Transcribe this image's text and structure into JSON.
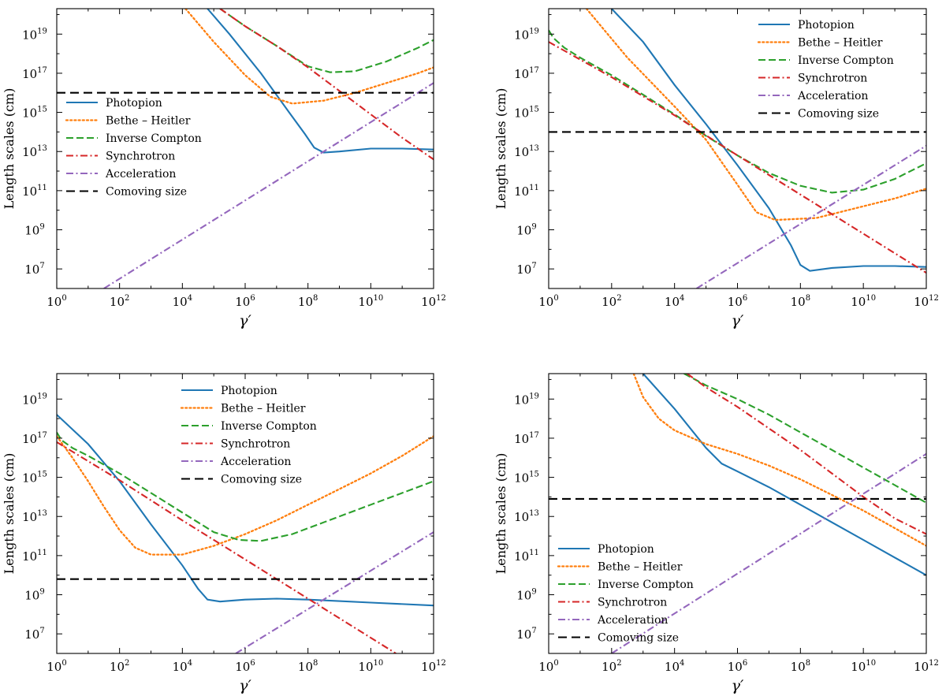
{
  "chart_data": [
    {
      "type": "line",
      "panel": "top-left",
      "xlabel": "γ′",
      "ylabel": "Length scales (cm)",
      "x_scale": "log",
      "y_scale": "log",
      "xlim_exp": [
        0,
        12
      ],
      "ylim_exp": [
        6,
        20.3
      ],
      "x_tick_exps": [
        0,
        2,
        4,
        6,
        8,
        10,
        12
      ],
      "y_tick_exps": [
        7,
        9,
        11,
        13,
        15,
        17,
        19
      ],
      "legend_position": "center-left",
      "series": [
        {
          "name": "Photopion",
          "color": "#1f77b4",
          "style": "solid",
          "points": [
            [
              4.8,
              20.3
            ],
            [
              5.5,
              19.0
            ],
            [
              6.5,
              17.0
            ],
            [
              7.4,
              15.0
            ],
            [
              7.9,
              13.9
            ],
            [
              8.2,
              13.2
            ],
            [
              8.5,
              12.95
            ],
            [
              9.0,
              13.0
            ],
            [
              10.0,
              13.15
            ],
            [
              11.0,
              13.15
            ],
            [
              12.0,
              13.1
            ]
          ]
        },
        {
          "name": "Bethe – Heitler",
          "color": "#ff7f0e",
          "style": "dotted",
          "points": [
            [
              4.1,
              20.3
            ],
            [
              5.0,
              18.6
            ],
            [
              6.0,
              16.9
            ],
            [
              6.8,
              15.8
            ],
            [
              7.5,
              15.45
            ],
            [
              8.5,
              15.6
            ],
            [
              9.5,
              16.0
            ],
            [
              10.5,
              16.5
            ],
            [
              11.5,
              17.0
            ],
            [
              12.0,
              17.3
            ]
          ]
        },
        {
          "name": "Inverse Compton",
          "color": "#2ca02c",
          "style": "dashed",
          "points": [
            [
              5.2,
              20.3
            ],
            [
              6.0,
              19.4
            ],
            [
              7.0,
              18.4
            ],
            [
              8.0,
              17.35
            ],
            [
              8.7,
              17.05
            ],
            [
              9.5,
              17.1
            ],
            [
              10.5,
              17.6
            ],
            [
              11.5,
              18.3
            ],
            [
              12.0,
              18.7
            ]
          ]
        },
        {
          "name": "Synchrotron",
          "color": "#d62728",
          "style": "dashdot",
          "points": [
            [
              5.2,
              20.3
            ],
            [
              6.0,
              19.4
            ],
            [
              7.0,
              18.4
            ],
            [
              8.0,
              17.3
            ],
            [
              9.0,
              16.1
            ],
            [
              10.0,
              14.9
            ],
            [
              11.0,
              13.7
            ],
            [
              12.0,
              12.6
            ]
          ]
        },
        {
          "name": "Acceleration",
          "color": "#9467bd",
          "style": "dashdot2",
          "points": [
            [
              1.5,
              6.0
            ],
            [
              12.0,
              16.5
            ]
          ]
        },
        {
          "name": "Comoving size",
          "color": "#000000",
          "style": "longdash",
          "points": [
            [
              0,
              16.0
            ],
            [
              12,
              16.0
            ]
          ]
        }
      ]
    },
    {
      "type": "line",
      "panel": "top-right",
      "xlabel": "γ′",
      "ylabel": "Length scales (cm)",
      "x_scale": "log",
      "y_scale": "log",
      "xlim_exp": [
        0,
        12
      ],
      "ylim_exp": [
        6,
        20.3
      ],
      "x_tick_exps": [
        0,
        2,
        4,
        6,
        8,
        10,
        12
      ],
      "y_tick_exps": [
        7,
        9,
        11,
        13,
        15,
        17,
        19
      ],
      "legend_position": "top-right",
      "series": [
        {
          "name": "Photopion",
          "color": "#1f77b4",
          "style": "solid",
          "points": [
            [
              2.0,
              20.3
            ],
            [
              3.0,
              18.6
            ],
            [
              4.0,
              16.4
            ],
            [
              5.0,
              14.4
            ],
            [
              6.0,
              12.3
            ],
            [
              7.0,
              10.1
            ],
            [
              7.7,
              8.2
            ],
            [
              8.0,
              7.2
            ],
            [
              8.3,
              6.9
            ],
            [
              9.0,
              7.05
            ],
            [
              10.0,
              7.15
            ],
            [
              11.0,
              7.15
            ],
            [
              12.0,
              7.1
            ]
          ]
        },
        {
          "name": "Bethe – Heitler",
          "color": "#ff7f0e",
          "style": "dotted",
          "points": [
            [
              1.2,
              20.3
            ],
            [
              2.5,
              17.8
            ],
            [
              4.0,
              15.3
            ],
            [
              5.0,
              13.6
            ],
            [
              6.0,
              11.3
            ],
            [
              6.6,
              9.9
            ],
            [
              7.2,
              9.5
            ],
            [
              8.5,
              9.6
            ],
            [
              10.0,
              10.2
            ],
            [
              11.0,
              10.6
            ],
            [
              12.0,
              11.1
            ]
          ]
        },
        {
          "name": "Inverse Compton",
          "color": "#2ca02c",
          "style": "dashed",
          "points": [
            [
              0,
              19.2
            ],
            [
              0.15,
              18.8
            ],
            [
              0.5,
              18.3
            ],
            [
              1.0,
              17.8
            ],
            [
              2.0,
              16.9
            ],
            [
              3.0,
              15.9
            ],
            [
              4.0,
              14.9
            ],
            [
              5.0,
              13.8
            ],
            [
              6.0,
              12.8
            ],
            [
              7.0,
              11.9
            ],
            [
              8.0,
              11.25
            ],
            [
              9.0,
              10.9
            ],
            [
              10.0,
              11.05
            ],
            [
              11.0,
              11.6
            ],
            [
              12.0,
              12.4
            ]
          ]
        },
        {
          "name": "Synchrotron",
          "color": "#d62728",
          "style": "dashdot",
          "points": [
            [
              0,
              18.6
            ],
            [
              2.0,
              16.8
            ],
            [
              4.0,
              14.85
            ],
            [
              6.0,
              12.8
            ],
            [
              8.0,
              10.8
            ],
            [
              10.0,
              8.8
            ],
            [
              12.0,
              6.8
            ]
          ]
        },
        {
          "name": "Acceleration",
          "color": "#9467bd",
          "style": "dashdot2",
          "points": [
            [
              4.7,
              6.0
            ],
            [
              12.0,
              13.3
            ]
          ]
        },
        {
          "name": "Comoving size",
          "color": "#000000",
          "style": "longdash",
          "points": [
            [
              0,
              14.0
            ],
            [
              12,
              14.0
            ]
          ]
        }
      ]
    },
    {
      "type": "line",
      "panel": "bottom-left",
      "xlabel": "γ′",
      "ylabel": "Length scales (cm)",
      "x_scale": "log",
      "y_scale": "log",
      "xlim_exp": [
        0,
        12
      ],
      "ylim_exp": [
        6,
        20.3
      ],
      "x_tick_exps": [
        0,
        2,
        4,
        6,
        8,
        10,
        12
      ],
      "y_tick_exps": [
        7,
        9,
        11,
        13,
        15,
        17,
        19
      ],
      "legend_position": "top-center",
      "series": [
        {
          "name": "Photopion",
          "color": "#1f77b4",
          "style": "solid",
          "points": [
            [
              0,
              18.2
            ],
            [
              1.0,
              16.7
            ],
            [
              2.0,
              14.8
            ],
            [
              3.0,
              12.6
            ],
            [
              4.0,
              10.5
            ],
            [
              4.5,
              9.3
            ],
            [
              4.8,
              8.75
            ],
            [
              5.2,
              8.65
            ],
            [
              6.0,
              8.75
            ],
            [
              7.0,
              8.8
            ],
            [
              8.0,
              8.75
            ],
            [
              10.0,
              8.6
            ],
            [
              12.0,
              8.45
            ]
          ]
        },
        {
          "name": "Bethe – Heitler",
          "color": "#ff7f0e",
          "style": "dotted",
          "points": [
            [
              0,
              17.1
            ],
            [
              0.5,
              16.0
            ],
            [
              1.0,
              14.8
            ],
            [
              1.5,
              13.5
            ],
            [
              2.0,
              12.3
            ],
            [
              2.5,
              11.4
            ],
            [
              3.0,
              11.05
            ],
            [
              4.0,
              11.05
            ],
            [
              5.0,
              11.5
            ],
            [
              6.0,
              12.1
            ],
            [
              7.0,
              12.8
            ],
            [
              8.0,
              13.6
            ],
            [
              9.0,
              14.4
            ],
            [
              10.0,
              15.2
            ],
            [
              11.0,
              16.1
            ],
            [
              12.0,
              17.1
            ]
          ]
        },
        {
          "name": "Inverse Compton",
          "color": "#2ca02c",
          "style": "dashed",
          "points": [
            [
              0,
              17.3
            ],
            [
              0.15,
              16.9
            ],
            [
              0.5,
              16.5
            ],
            [
              1.0,
              16.1
            ],
            [
              2.0,
              15.2
            ],
            [
              3.0,
              14.2
            ],
            [
              4.0,
              13.2
            ],
            [
              5.0,
              12.2
            ],
            [
              5.8,
              11.8
            ],
            [
              6.5,
              11.75
            ],
            [
              7.5,
              12.1
            ],
            [
              8.5,
              12.7
            ],
            [
              10.0,
              13.6
            ],
            [
              11.0,
              14.2
            ],
            [
              12.0,
              14.8
            ]
          ]
        },
        {
          "name": "Synchrotron",
          "color": "#d62728",
          "style": "dashdot",
          "points": [
            [
              0,
              16.8
            ],
            [
              2.0,
              14.85
            ],
            [
              4.0,
              12.8
            ],
            [
              6.0,
              10.8
            ],
            [
              8.0,
              8.8
            ],
            [
              10.0,
              6.8
            ],
            [
              10.8,
              6.0
            ]
          ]
        },
        {
          "name": "Acceleration",
          "color": "#9467bd",
          "style": "dashdot2",
          "points": [
            [
              5.7,
              6.0
            ],
            [
              12.0,
              12.2
            ]
          ]
        },
        {
          "name": "Comoving size",
          "color": "#000000",
          "style": "longdash",
          "points": [
            [
              0,
              9.8
            ],
            [
              12,
              9.8
            ]
          ]
        }
      ]
    },
    {
      "type": "line",
      "panel": "bottom-right",
      "xlabel": "γ′",
      "ylabel": "Length scales (cm)",
      "x_scale": "log",
      "y_scale": "log",
      "xlim_exp": [
        0,
        12
      ],
      "ylim_exp": [
        6,
        20.3
      ],
      "x_tick_exps": [
        0,
        2,
        4,
        6,
        8,
        10,
        12
      ],
      "y_tick_exps": [
        7,
        9,
        11,
        13,
        15,
        17,
        19
      ],
      "legend_position": "bottom-left",
      "series": [
        {
          "name": "Photopion",
          "color": "#1f77b4",
          "style": "solid",
          "points": [
            [
              3.0,
              20.3
            ],
            [
              4.0,
              18.5
            ],
            [
              5.0,
              16.5
            ],
            [
              5.5,
              15.7
            ],
            [
              6.0,
              15.3
            ],
            [
              7.0,
              14.5
            ],
            [
              8.0,
              13.6
            ],
            [
              9.0,
              12.7
            ],
            [
              10.0,
              11.8
            ],
            [
              11.0,
              10.9
            ],
            [
              12.0,
              10.0
            ]
          ]
        },
        {
          "name": "Bethe – Heitler",
          "color": "#ff7f0e",
          "style": "dotted",
          "points": [
            [
              2.7,
              20.3
            ],
            [
              3.0,
              19.1
            ],
            [
              3.5,
              18.0
            ],
            [
              4.0,
              17.4
            ],
            [
              5.0,
              16.7
            ],
            [
              6.0,
              16.2
            ],
            [
              7.0,
              15.6
            ],
            [
              8.0,
              14.9
            ],
            [
              9.0,
              14.1
            ],
            [
              10.0,
              13.3
            ],
            [
              11.0,
              12.4
            ],
            [
              12.0,
              11.5
            ]
          ]
        },
        {
          "name": "Inverse Compton",
          "color": "#2ca02c",
          "style": "dashed",
          "points": [
            [
              4.3,
              20.3
            ],
            [
              5.0,
              19.7
            ],
            [
              6.0,
              19.0
            ],
            [
              7.0,
              18.2
            ],
            [
              8.0,
              17.3
            ],
            [
              9.0,
              16.4
            ],
            [
              10.0,
              15.5
            ],
            [
              11.0,
              14.6
            ],
            [
              12.0,
              13.7
            ]
          ]
        },
        {
          "name": "Synchrotron",
          "color": "#d62728",
          "style": "dashdot",
          "points": [
            [
              4.4,
              20.3
            ],
            [
              5.0,
              19.6
            ],
            [
              6.0,
              18.6
            ],
            [
              7.0,
              17.5
            ],
            [
              8.0,
              16.4
            ],
            [
              9.0,
              15.2
            ],
            [
              10.0,
              14.0
            ],
            [
              11.0,
              12.9
            ],
            [
              12.0,
              12.1
            ]
          ]
        },
        {
          "name": "Acceleration",
          "color": "#9467bd",
          "style": "dashdot2",
          "points": [
            [
              2.0,
              6.0
            ],
            [
              12.0,
              16.2
            ]
          ]
        },
        {
          "name": "Comoving size",
          "color": "#000000",
          "style": "longdash",
          "points": [
            [
              0,
              13.9
            ],
            [
              12,
              13.9
            ]
          ]
        }
      ]
    }
  ]
}
